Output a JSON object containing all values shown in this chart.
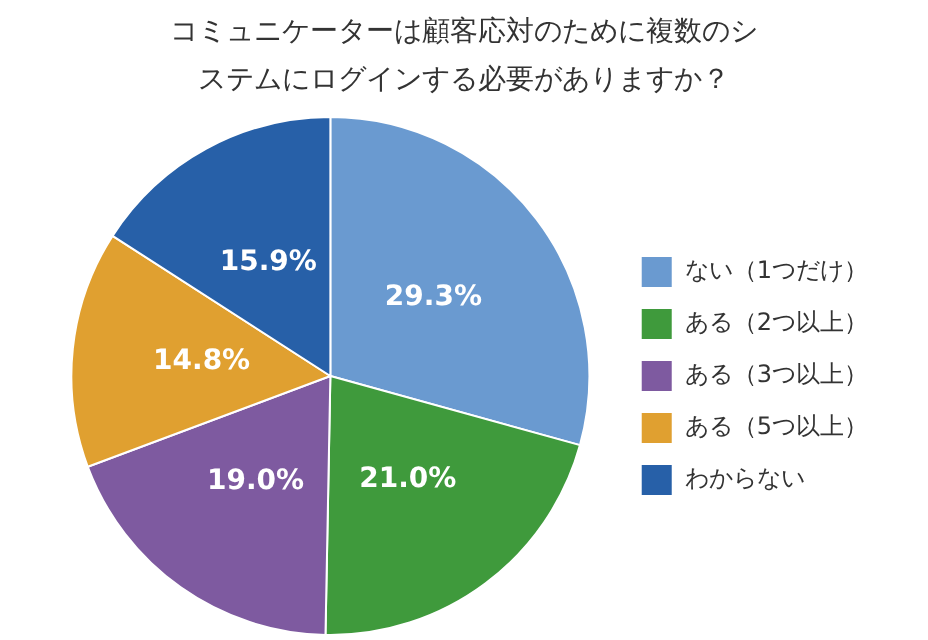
{
  "chart_data": {
    "type": "pie",
    "title": "コミュニケーターは顧客応対のために複数のシステムにログインする必要がありますか？",
    "categories": [
      "ない（1つだけ）",
      "ある（2つ以上）",
      "ある（3つ以上）",
      "ある（5つ以上）",
      "わからない"
    ],
    "values": [
      29.3,
      21.0,
      19.0,
      14.8,
      15.9
    ],
    "value_labels": [
      "29.3%",
      "21.0%",
      "19.0%",
      "14.8%",
      "15.9%"
    ],
    "colors": [
      "#6a9ad0",
      "#3f9a3c",
      "#7e5aa0",
      "#e0a030",
      "#2760a8"
    ],
    "legend": "right"
  }
}
